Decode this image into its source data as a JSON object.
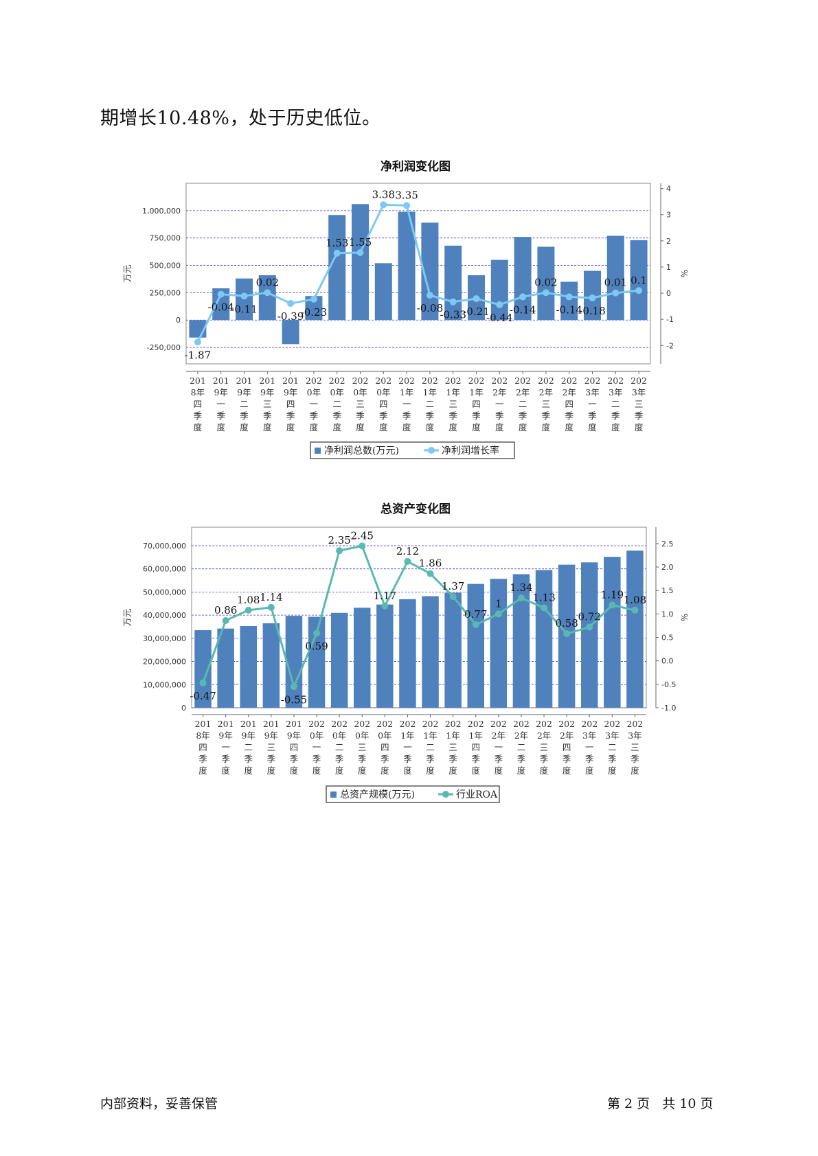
{
  "intro_text": "期增长10.48%，处于历史低位。",
  "footer": {
    "left": "内部资料，妥善保管",
    "right": "第 2 页   共 10 页"
  },
  "colors": {
    "bar": "#4f81bd",
    "line1": "#7ec8f4",
    "line2": "#5ab8b2",
    "grid": "#3b3bd6"
  },
  "chart_data": [
    {
      "type": "bar",
      "title": "净利润变化图",
      "ylabel": "万元",
      "y2label": "%",
      "categories": [
        "2018年四季度",
        "2019年一季度",
        "2019年二季度",
        "2019年三季度",
        "2019年四季度",
        "2020年一季度",
        "2020年二季度",
        "2020年三季度",
        "2020年四季度",
        "2021年一季度",
        "2021年二季度",
        "2021年三季度",
        "2021年四季度",
        "2022年一季度",
        "2022年二季度",
        "2022年三季度",
        "2022年四季度",
        "2023年一季度",
        "2023年二季度",
        "2023年三季度"
      ],
      "category_lines": [
        [
          "201",
          "8年",
          "四",
          "季",
          "度"
        ],
        [
          "201",
          "9年",
          "一",
          "季",
          "度"
        ],
        [
          "201",
          "9年",
          "二",
          "季",
          "度"
        ],
        [
          "201",
          "9年",
          "三",
          "季",
          "度"
        ],
        [
          "201",
          "9年",
          "四",
          "季",
          "度"
        ],
        [
          "202",
          "0年",
          "一",
          "季",
          "度"
        ],
        [
          "202",
          "0年",
          "二",
          "季",
          "度"
        ],
        [
          "202",
          "0年",
          "三",
          "季",
          "度"
        ],
        [
          "202",
          "0年",
          "四",
          "季",
          "度"
        ],
        [
          "202",
          "1年",
          "一",
          "季",
          "度"
        ],
        [
          "202",
          "1年",
          "二",
          "季",
          "度"
        ],
        [
          "202",
          "1年",
          "三",
          "季",
          "度"
        ],
        [
          "202",
          "1年",
          "四",
          "季",
          "度"
        ],
        [
          "202",
          "2年",
          "一",
          "季",
          "度"
        ],
        [
          "202",
          "2年",
          "二",
          "季",
          "度"
        ],
        [
          "202",
          "2年",
          "三",
          "季",
          "度"
        ],
        [
          "202",
          "2年",
          "四",
          "季",
          "度"
        ],
        [
          "202",
          "3年",
          "一",
          "季",
          "度"
        ],
        [
          "202",
          "3年",
          "二",
          "季",
          "度"
        ],
        [
          "202",
          "3年",
          "三",
          "季",
          "度"
        ]
      ],
      "series": [
        {
          "name": "净利润总数(万元)",
          "type": "bar",
          "axis": "left",
          "values": [
            -160000,
            290000,
            380000,
            410000,
            -220000,
            220000,
            960000,
            1060000,
            520000,
            990000,
            890000,
            680000,
            410000,
            550000,
            760000,
            670000,
            350000,
            450000,
            770000,
            730000
          ]
        },
        {
          "name": "净利润增长率",
          "type": "line",
          "axis": "right",
          "values": [
            -1.87,
            -0.04,
            -0.11,
            0.02,
            -0.39,
            -0.23,
            1.53,
            1.55,
            3.38,
            3.35,
            -0.08,
            -0.33,
            -0.21,
            -0.44,
            -0.14,
            0.02,
            -0.14,
            -0.18,
            0.01,
            0.1
          ],
          "labels": [
            "-1.87",
            "-0.04",
            "-0.11",
            "0.02",
            "-0.39",
            "-0.23",
            "1.53",
            "1.55",
            "3.38",
            "3.35",
            "-0.08",
            "-0.33",
            "-0.21",
            "-0.44",
            "-0.14",
            "0.02",
            "-0.14",
            "-0.18",
            "0.01",
            "0.1"
          ]
        }
      ],
      "y_ticks": [
        "-250,000",
        "0",
        "250,000",
        "500,000",
        "750,000",
        "1,000,000"
      ],
      "ylim": [
        -400000,
        1250000
      ],
      "y2_ticks": [
        "-2",
        "-1",
        "0",
        "1",
        "2",
        "3",
        "4"
      ],
      "y2lim": [
        -2.7,
        4.2
      ],
      "grid": true,
      "legend": "bottom"
    },
    {
      "type": "bar",
      "title": "总资产变化图",
      "ylabel": "万元",
      "y2label": "%",
      "categories": [
        "2018年四季度",
        "2019年一季度",
        "2019年二季度",
        "2019年三季度",
        "2019年四季度",
        "2020年一季度",
        "2020年二季度",
        "2020年三季度",
        "2020年四季度",
        "2021年一季度",
        "2021年二季度",
        "2021年三季度",
        "2021年四季度",
        "2022年一季度",
        "2022年二季度",
        "2022年三季度",
        "2022年四季度",
        "2023年一季度",
        "2023年二季度",
        "2023年三季度"
      ],
      "category_lines": [
        [
          "201",
          "8年",
          "四",
          "季",
          "度"
        ],
        [
          "201",
          "9年",
          "一",
          "季",
          "度"
        ],
        [
          "201",
          "9年",
          "二",
          "季",
          "度"
        ],
        [
          "201",
          "9年",
          "三",
          "季",
          "度"
        ],
        [
          "201",
          "9年",
          "四",
          "季",
          "度"
        ],
        [
          "202",
          "0年",
          "一",
          "季",
          "度"
        ],
        [
          "202",
          "0年",
          "二",
          "季",
          "度"
        ],
        [
          "202",
          "0年",
          "三",
          "季",
          "度"
        ],
        [
          "202",
          "0年",
          "四",
          "季",
          "度"
        ],
        [
          "202",
          "1年",
          "一",
          "季",
          "度"
        ],
        [
          "202",
          "1年",
          "二",
          "季",
          "度"
        ],
        [
          "202",
          "1年",
          "三",
          "季",
          "度"
        ],
        [
          "202",
          "1年",
          "四",
          "季",
          "度"
        ],
        [
          "202",
          "2年",
          "一",
          "季",
          "度"
        ],
        [
          "202",
          "2年",
          "二",
          "季",
          "度"
        ],
        [
          "202",
          "2年",
          "三",
          "季",
          "度"
        ],
        [
          "202",
          "2年",
          "四",
          "季",
          "度"
        ],
        [
          "202",
          "3年",
          "一",
          "季",
          "度"
        ],
        [
          "202",
          "3年",
          "二",
          "季",
          "度"
        ],
        [
          "202",
          "3年",
          "三",
          "季",
          "度"
        ]
      ],
      "series": [
        {
          "name": "总资产规模(万元)",
          "type": "bar",
          "axis": "left",
          "values": [
            33500000,
            34200000,
            35300000,
            36500000,
            39700000,
            39300000,
            41000000,
            43200000,
            44600000,
            46900000,
            48200000,
            49700000,
            53500000,
            55700000,
            57700000,
            59500000,
            61800000,
            62800000,
            65200000,
            67900000
          ]
        },
        {
          "name": "行业ROA",
          "type": "line",
          "axis": "right",
          "values": [
            -0.47,
            0.86,
            1.08,
            1.14,
            -0.55,
            0.59,
            2.35,
            2.45,
            1.17,
            2.12,
            1.86,
            1.37,
            0.77,
            1.0,
            1.34,
            1.13,
            0.58,
            0.72,
            1.19,
            1.08
          ],
          "labels": [
            "-0.47",
            "0.86",
            "1.08",
            "1.14",
            "-0.55",
            "0.59",
            "2.35",
            "2.45",
            "1.17",
            "2.12",
            "1.86",
            "1.37",
            "0.77",
            "1",
            "1.34",
            "1.13",
            "0.58",
            "0.72",
            "1.19",
            "1.08"
          ]
        }
      ],
      "y_ticks": [
        "0",
        "10,000,000",
        "20,000,000",
        "30,000,000",
        "40,000,000",
        "50,000,000",
        "60,000,000",
        "70,000,000"
      ],
      "ylim": [
        0,
        78000000
      ],
      "y2_ticks": [
        "-1.0",
        "-0.5",
        "0.0",
        "0.5",
        "1.0",
        "1.5",
        "2.0",
        "2.5"
      ],
      "y2lim": [
        -1.0,
        2.85
      ],
      "grid": true,
      "legend": "bottom"
    }
  ]
}
